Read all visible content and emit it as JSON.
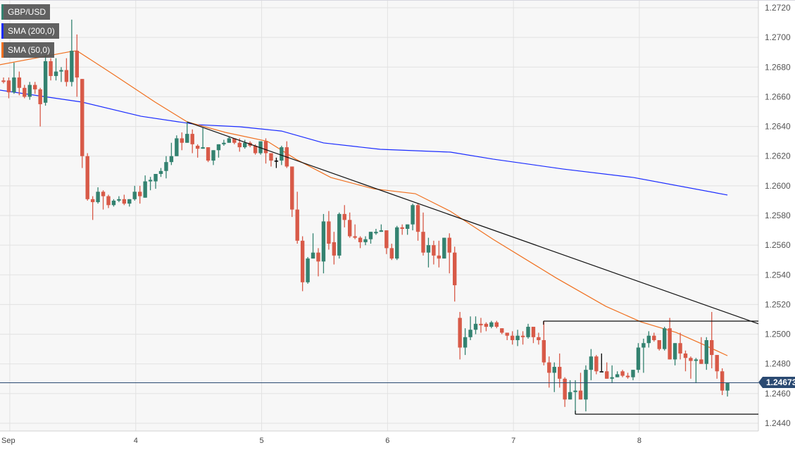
{
  "legend": [
    {
      "label": "GBP/USD",
      "color": "#338270"
    },
    {
      "label": "SMA (200,0)",
      "color": "#1a2bff"
    },
    {
      "label": "SMA (50,0)",
      "color": "#f07020"
    }
  ],
  "current_price_label": "1.24673",
  "chart_data": {
    "type": "candlestick",
    "symbol": "GBP/USD",
    "interval": "hourly",
    "ylim": [
      1.244,
      1.272
    ],
    "y_ticks": [
      "1.2720",
      "1.2700",
      "1.2680",
      "1.2660",
      "1.2640",
      "1.2620",
      "1.2600",
      "1.2580",
      "1.2560",
      "1.2540",
      "1.2520",
      "1.2500",
      "1.2480",
      "1.2460",
      "1.2440"
    ],
    "x_ticks": [
      {
        "label": "Sep",
        "bar": 1
      },
      {
        "label": "4",
        "bar": 25
      },
      {
        "label": "5",
        "bar": 49
      },
      {
        "label": "6",
        "bar": 73
      },
      {
        "label": "7",
        "bar": 97
      },
      {
        "label": "8",
        "bar": 121
      }
    ],
    "grid": true,
    "colors": {
      "up": "#338270",
      "down": "#d85a48",
      "sma200": "#1a2bff",
      "sma50": "#f07020",
      "trendline": "#111111",
      "current_price": "#2b4a72",
      "doji_marker": "#000000"
    },
    "candles_ohlc": [
      [
        1.2671,
        1.2673,
        1.2669,
        1.267
      ],
      [
        1.2671,
        1.2673,
        1.2659,
        1.2663
      ],
      [
        1.2663,
        1.2683,
        1.2662,
        1.2673
      ],
      [
        1.2673,
        1.2677,
        1.2661,
        1.2666
      ],
      [
        1.2666,
        1.2668,
        1.2659,
        1.266
      ],
      [
        1.266,
        1.267,
        1.2658,
        1.2668
      ],
      [
        1.2668,
        1.267,
        1.2662,
        1.2665
      ],
      [
        1.2665,
        1.2666,
        1.264,
        1.2655
      ],
      [
        1.2656,
        1.2688,
        1.2654,
        1.2684
      ],
      [
        1.2684,
        1.2686,
        1.2671,
        1.2674
      ],
      [
        1.2674,
        1.2686,
        1.2671,
        1.2677
      ],
      [
        1.2677,
        1.268,
        1.267,
        1.2678
      ],
      [
        1.2678,
        1.2686,
        1.2667,
        1.267
      ],
      [
        1.267,
        1.2712,
        1.2667,
        1.2691
      ],
      [
        1.2691,
        1.2702,
        1.266,
        1.2673
      ],
      [
        1.2672,
        1.2672,
        1.2612,
        1.262
      ],
      [
        1.262,
        1.2622,
        1.259,
        1.2591
      ],
      [
        1.2591,
        1.2593,
        1.2577,
        1.2589
      ],
      [
        1.2589,
        1.2599,
        1.2588,
        1.2596
      ],
      [
        1.2596,
        1.2597,
        1.2584,
        1.2593
      ],
      [
        1.2593,
        1.2594,
        1.2585,
        1.2587
      ],
      [
        1.2587,
        1.2591,
        1.2586,
        1.259
      ],
      [
        1.259,
        1.2593,
        1.2589,
        1.2591
      ],
      [
        1.2591,
        1.2594,
        1.2587,
        1.2588
      ],
      [
        1.2588,
        1.2591,
        1.2586,
        1.2591
      ],
      [
        1.2591,
        1.26,
        1.259,
        1.2596
      ],
      [
        1.2596,
        1.26,
        1.2588,
        1.2593
      ],
      [
        1.2592,
        1.2607,
        1.2592,
        1.2603
      ],
      [
        1.2603,
        1.2606,
        1.2597,
        1.2604
      ],
      [
        1.2603,
        1.2608,
        1.2598,
        1.2608
      ],
      [
        1.2608,
        1.2612,
        1.2606,
        1.261
      ],
      [
        1.261,
        1.262,
        1.2605,
        1.2616
      ],
      [
        1.2616,
        1.2629,
        1.2614,
        1.262
      ],
      [
        1.262,
        1.2634,
        1.262,
        1.2632
      ],
      [
        1.2632,
        1.2636,
        1.2624,
        1.2629
      ],
      [
        1.2629,
        1.2643,
        1.2629,
        1.2635
      ],
      [
        1.2635,
        1.2638,
        1.2622,
        1.2628
      ],
      [
        1.2627,
        1.2628,
        1.2619,
        1.2625
      ],
      [
        1.2625,
        1.2639,
        1.2625,
        1.2626
      ],
      [
        1.2626,
        1.2626,
        1.2616,
        1.2617
      ],
      [
        1.2617,
        1.2624,
        1.2614,
        1.2624
      ],
      [
        1.2624,
        1.2628,
        1.2619,
        1.2628
      ],
      [
        1.2628,
        1.2631,
        1.2627,
        1.2629
      ],
      [
        1.2629,
        1.2633,
        1.2629,
        1.2632
      ],
      [
        1.2632,
        1.2632,
        1.2628,
        1.2629
      ],
      [
        1.2629,
        1.2632,
        1.2623,
        1.2626
      ],
      [
        1.2626,
        1.2631,
        1.2625,
        1.2629
      ],
      [
        1.2629,
        1.263,
        1.2626,
        1.2627
      ],
      [
        1.2627,
        1.2628,
        1.2621,
        1.2622
      ],
      [
        1.2622,
        1.263,
        1.2621,
        1.263
      ],
      [
        1.263,
        1.2632,
        1.2615,
        1.2622
      ],
      [
        1.2622,
        1.2622,
        1.2613,
        1.2617
      ],
      [
        1.2617,
        1.2619,
        1.2612,
        1.2617
      ],
      [
        1.2617,
        1.2627,
        1.2614,
        1.2626
      ],
      [
        1.2626,
        1.263,
        1.2612,
        1.2613
      ],
      [
        1.2613,
        1.2613,
        1.2579,
        1.2584
      ],
      [
        1.2584,
        1.2596,
        1.2561,
        1.2563
      ],
      [
        1.2563,
        1.2566,
        1.2529,
        1.2535
      ],
      [
        1.2535,
        1.2552,
        1.2534,
        1.2551
      ],
      [
        1.2551,
        1.2568,
        1.2551,
        1.2555
      ],
      [
        1.2555,
        1.2558,
        1.2539,
        1.2549
      ],
      [
        1.2549,
        1.2581,
        1.2541,
        1.2576
      ],
      [
        1.2576,
        1.2583,
        1.2557,
        1.2561
      ],
      [
        1.2562,
        1.2569,
        1.2547,
        1.2553
      ],
      [
        1.2553,
        1.2582,
        1.2551,
        1.2581
      ],
      [
        1.2581,
        1.2587,
        1.2572,
        1.2577
      ],
      [
        1.2577,
        1.2582,
        1.2565,
        1.2566
      ],
      [
        1.2566,
        1.2574,
        1.2564,
        1.2565
      ],
      [
        1.2565,
        1.2566,
        1.2558,
        1.2562
      ],
      [
        1.2562,
        1.2566,
        1.256,
        1.2564
      ],
      [
        1.2564,
        1.2569,
        1.2561,
        1.2569
      ],
      [
        1.2568,
        1.2571,
        1.2567,
        1.2569
      ],
      [
        1.2569,
        1.2574,
        1.2569,
        1.257
      ],
      [
        1.257,
        1.257,
        1.2554,
        1.2558
      ],
      [
        1.2558,
        1.2561,
        1.255,
        1.2551
      ],
      [
        1.2551,
        1.2573,
        1.255,
        1.2572
      ],
      [
        1.2572,
        1.2574,
        1.2567,
        1.2571
      ],
      [
        1.2571,
        1.2574,
        1.2567,
        1.2574
      ],
      [
        1.2574,
        1.2588,
        1.257,
        1.2587
      ],
      [
        1.2587,
        1.2588,
        1.2563,
        1.2569
      ],
      [
        1.2569,
        1.2582,
        1.2553,
        1.2555
      ],
      [
        1.2555,
        1.2565,
        1.2545,
        1.256
      ],
      [
        1.256,
        1.2563,
        1.2547,
        1.2553
      ],
      [
        1.2553,
        1.2563,
        1.2545,
        1.2551
      ],
      [
        1.2551,
        1.2565,
        1.2551,
        1.2565
      ],
      [
        1.2565,
        1.2568,
        1.2541,
        1.2555
      ],
      [
        1.2555,
        1.2559,
        1.2522,
        1.2533
      ],
      [
        1.2511,
        1.2515,
        1.2483,
        1.2491
      ],
      [
        1.2491,
        1.2504,
        1.2486,
        1.2498
      ],
      [
        1.2498,
        1.2512,
        1.2496,
        1.2503
      ],
      [
        1.2503,
        1.2512,
        1.25,
        1.2507
      ],
      [
        1.2507,
        1.2511,
        1.2501,
        1.2506
      ],
      [
        1.2507,
        1.2508,
        1.2502,
        1.2505
      ],
      [
        1.2505,
        1.2509,
        1.2504,
        1.2508
      ],
      [
        1.2508,
        1.2509,
        1.2504,
        1.2505
      ],
      [
        1.2504,
        1.2504,
        1.25,
        1.2501
      ],
      [
        1.2501,
        1.2501,
        1.2496,
        1.2499
      ],
      [
        1.2499,
        1.2502,
        1.2493,
        1.2496
      ],
      [
        1.2496,
        1.2503,
        1.2492,
        1.2499
      ],
      [
        1.2499,
        1.2502,
        1.2493,
        1.2498
      ],
      [
        1.2498,
        1.2507,
        1.2497,
        1.2505
      ],
      [
        1.2505,
        1.2505,
        1.2494,
        1.2498
      ],
      [
        1.2498,
        1.2501,
        1.2493,
        1.2496
      ],
      [
        1.2496,
        1.2509,
        1.2479,
        1.2481
      ],
      [
        1.2481,
        1.2485,
        1.2464,
        1.2474
      ],
      [
        1.2474,
        1.2481,
        1.2461,
        1.2478
      ],
      [
        1.2478,
        1.2487,
        1.2464,
        1.247
      ],
      [
        1.247,
        1.2471,
        1.2451,
        1.2456
      ],
      [
        1.2456,
        1.2469,
        1.2456,
        1.2461
      ],
      [
        1.2461,
        1.2469,
        1.2446,
        1.2462
      ],
      [
        1.2462,
        1.2474,
        1.2456,
        1.2456
      ],
      [
        1.2456,
        1.2479,
        1.2448,
        1.2476
      ],
      [
        1.2476,
        1.249,
        1.2469,
        1.2485
      ],
      [
        1.2485,
        1.2486,
        1.2473,
        1.2475
      ],
      [
        1.2475,
        1.2487,
        1.2475,
        1.2475
      ],
      [
        1.2475,
        1.2481,
        1.247,
        1.247
      ],
      [
        1.247,
        1.2479,
        1.2467,
        1.2471
      ],
      [
        1.2471,
        1.2475,
        1.2471,
        1.2473
      ],
      [
        1.2475,
        1.2476,
        1.2471,
        1.2472
      ],
      [
        1.2472,
        1.2474,
        1.247,
        1.2471
      ],
      [
        1.2471,
        1.2476,
        1.2469,
        1.2476
      ],
      [
        1.2476,
        1.2494,
        1.2474,
        1.2491
      ],
      [
        1.2491,
        1.2497,
        1.2474,
        1.2494
      ],
      [
        1.2494,
        1.2502,
        1.2491,
        1.2499
      ],
      [
        1.2499,
        1.2501,
        1.2495,
        1.2496
      ],
      [
        1.2496,
        1.2496,
        1.2489,
        1.249
      ],
      [
        1.249,
        1.2505,
        1.2489,
        1.2504
      ],
      [
        1.2504,
        1.2511,
        1.2483,
        1.2483
      ],
      [
        1.2483,
        1.2494,
        1.2479,
        1.2494
      ],
      [
        1.2494,
        1.2501,
        1.2483,
        1.2487
      ],
      [
        1.2487,
        1.2489,
        1.2475,
        1.2484
      ],
      [
        1.2484,
        1.2485,
        1.247,
        1.2482
      ],
      [
        1.2482,
        1.2484,
        1.2467,
        1.2483
      ],
      [
        1.2483,
        1.2498,
        1.248,
        1.248
      ],
      [
        1.248,
        1.2498,
        1.2476,
        1.2496
      ],
      [
        1.2496,
        1.2515,
        1.2477,
        1.2486
      ],
      [
        1.2486,
        1.2486,
        1.247,
        1.2475
      ],
      [
        1.2475,
        1.2477,
        1.2459,
        1.2462
      ],
      [
        1.2462,
        1.2467,
        1.2458,
        1.2467
      ]
    ],
    "doji_marker_bars": [
      52,
      114
    ],
    "sma200": [
      [
        -0.7,
        1.26645
      ],
      [
        15,
        1.26564
      ],
      [
        26.2,
        1.26469
      ],
      [
        37,
        1.26412
      ],
      [
        45,
        1.26398
      ],
      [
        53,
        1.26369
      ],
      [
        61,
        1.26289
      ],
      [
        71.8,
        1.26246
      ],
      [
        85.2,
        1.26227
      ],
      [
        93.3,
        1.2618
      ],
      [
        106.7,
        1.26113
      ],
      [
        120.1,
        1.26056
      ],
      [
        138,
        1.25938
      ]
    ],
    "sma50": [
      [
        -0.7,
        1.26816
      ],
      [
        13,
        1.26906
      ],
      [
        14,
        1.2691
      ],
      [
        20.8,
        1.26754
      ],
      [
        28.9,
        1.26564
      ],
      [
        35,
        1.26431
      ],
      [
        42.3,
        1.2636
      ],
      [
        50.3,
        1.263
      ],
      [
        55.7,
        1.2618
      ],
      [
        62.4,
        1.26056
      ],
      [
        70.5,
        1.2598
      ],
      [
        78.5,
        1.25947
      ],
      [
        85.2,
        1.25828
      ],
      [
        93.3,
        1.2564
      ],
      [
        105.4,
        1.25378
      ],
      [
        114.8,
        1.25188
      ],
      [
        121.5,
        1.25083
      ],
      [
        128.2,
        1.25012
      ],
      [
        133.6,
        1.24927
      ],
      [
        138,
        1.24855
      ]
    ],
    "trendline": {
      "from": [
        35,
        1.26431
      ],
      "to_right_edge": 1.2507
    },
    "range_box": {
      "top": {
        "from_bar": 103,
        "value": 1.25088
      },
      "bottom": {
        "from_bar": 109,
        "value": 1.24461
      }
    },
    "current_price": 1.24673
  }
}
